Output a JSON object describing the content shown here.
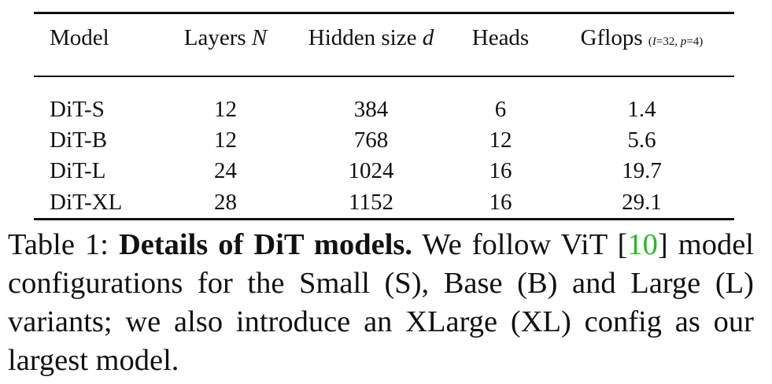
{
  "table": {
    "headers": {
      "model": "Model",
      "layers": "Layers",
      "layers_var": "N",
      "hidden": "Hidden size",
      "hidden_var": "d",
      "heads": "Heads",
      "gflops": "Gflops",
      "gflops_note_open": "(",
      "gflops_note_I": "I",
      "gflops_note_mid": "=32, ",
      "gflops_note_p": "p",
      "gflops_note_close": "=4)"
    },
    "rows": [
      {
        "model": "DiT-S",
        "layers": "12",
        "hidden": "384",
        "heads": "6",
        "gflops": "1.4"
      },
      {
        "model": "DiT-B",
        "layers": "12",
        "hidden": "768",
        "heads": "12",
        "gflops": "5.6"
      },
      {
        "model": "DiT-L",
        "layers": "24",
        "hidden": "1024",
        "heads": "16",
        "gflops": "19.7"
      },
      {
        "model": "DiT-XL",
        "layers": "28",
        "hidden": "1152",
        "heads": "16",
        "gflops": "29.1"
      }
    ]
  },
  "caption": {
    "label": "Table 1:",
    "title": "Details of DiT models.",
    "text_before_ref": "We follow ViT [",
    "ref": "10",
    "text_after_ref": "] model configurations for the Small (S), Base (B) and Large (L) variants; we also introduce an XLarge (XL) config as our largest model.",
    "ref_color": "#22bb22"
  }
}
